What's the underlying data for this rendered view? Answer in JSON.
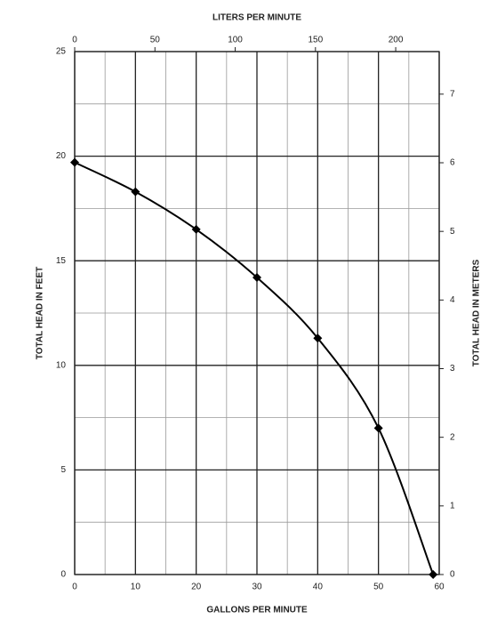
{
  "chart_data": {
    "type": "line",
    "x_label": "GALLONS PER MINUTE",
    "x2_label": "LITERS PER MINUTE",
    "y_label": "TOTAL HEAD IN FEET",
    "y2_label": "TOTAL HEAD IN METERS",
    "x": [
      0,
      10,
      20,
      30,
      40,
      50,
      59
    ],
    "series": [
      {
        "color": "#000000",
        "values": [
          19.7,
          18.3,
          16.5,
          14.2,
          11.3,
          7.0,
          0
        ]
      }
    ],
    "marker": "diamond",
    "xlim": [
      0,
      60
    ],
    "xticks": [
      0,
      10,
      20,
      30,
      40,
      50,
      60
    ],
    "ylim": [
      0,
      25
    ],
    "yticks": [
      0,
      5,
      10,
      15,
      20,
      25
    ],
    "x2lim": [
      0,
      227.1
    ],
    "x2ticks": [
      0,
      50,
      100,
      150,
      200
    ],
    "y2lim": [
      0,
      7.62
    ],
    "y2ticks": [
      0,
      1,
      2,
      3,
      4,
      5,
      6,
      7
    ],
    "grid": true,
    "xminor": [
      5,
      15,
      25,
      35,
      45,
      55
    ],
    "yminor": [
      2.5,
      7.5,
      12.5,
      17.5,
      22.5
    ]
  }
}
